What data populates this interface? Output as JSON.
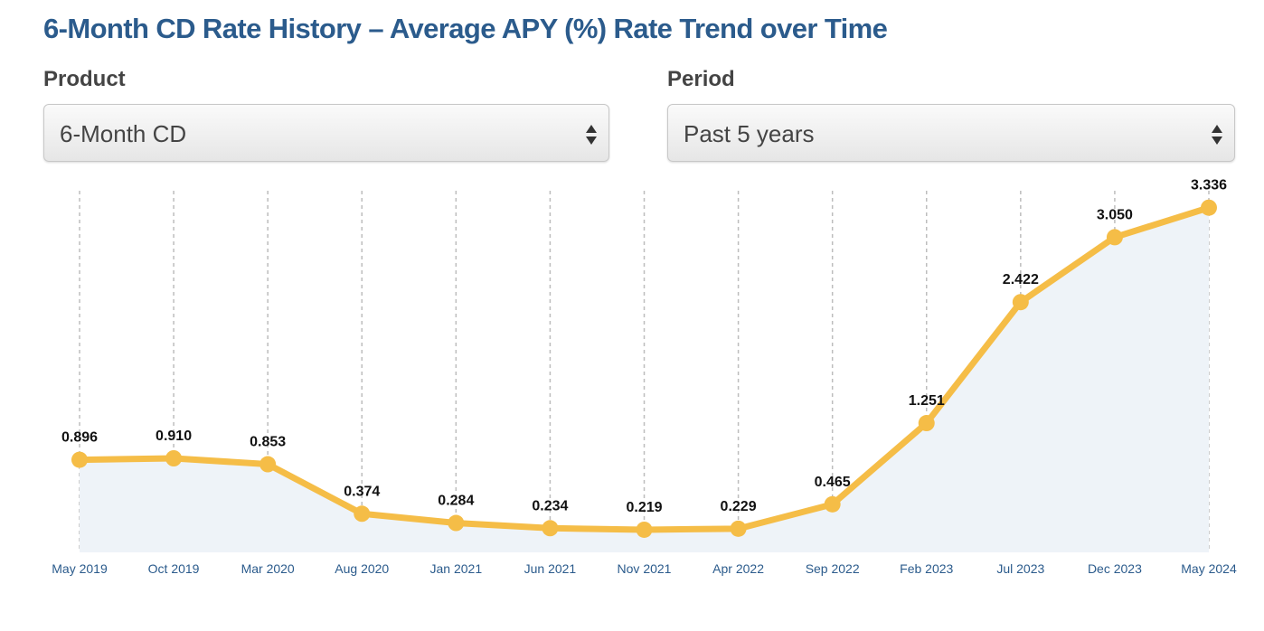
{
  "controls": [
    {
      "label": "Product",
      "selected": "6-Month CD"
    },
    {
      "label": "Period",
      "selected": "Past 5 years"
    }
  ],
  "chart_data": {
    "type": "line",
    "title": "6-Month CD Rate History – Average APY (%) Rate Trend over Time",
    "categories": [
      "May 2019",
      "Oct 2019",
      "Mar 2020",
      "Aug 2020",
      "Jan 2021",
      "Jun 2021",
      "Nov 2021",
      "Apr 2022",
      "Sep 2022",
      "Feb 2023",
      "Jul 2023",
      "Dec 2023",
      "May 2024"
    ],
    "values": [
      0.896,
      0.91,
      0.853,
      0.374,
      0.284,
      0.234,
      0.219,
      0.229,
      0.465,
      1.251,
      2.422,
      3.05,
      3.336
    ],
    "value_labels": [
      "0.896",
      "0.910",
      "0.853",
      "0.374",
      "0.284",
      "0.234",
      "0.219",
      "0.229",
      "0.465",
      "1.251",
      "2.422",
      "3.050",
      "3.336"
    ],
    "color": "#f5bd47",
    "area_color": "#eef3f8",
    "ylim": [
      0,
      3.5
    ],
    "grid": true
  }
}
